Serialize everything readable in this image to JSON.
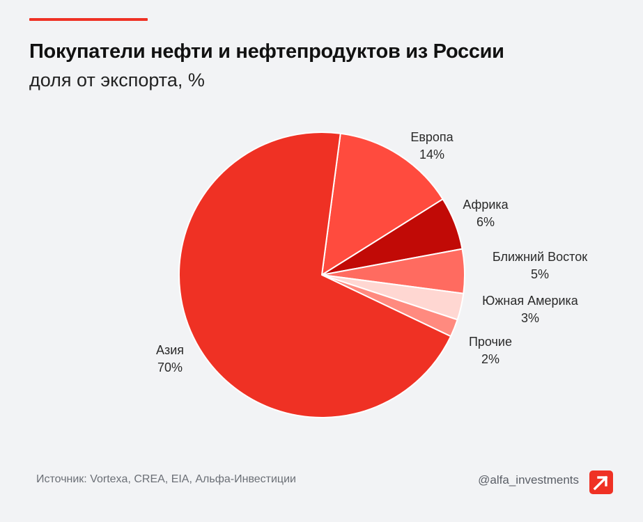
{
  "header": {
    "title": "Покупатели нефти и нефтепродуктов из России",
    "subtitle": "доля от экспорта, %"
  },
  "footer": {
    "source": "Источник: Vortexa, CREA, EIA, Альфа-Инвестиции",
    "handle": "@alfa_investments"
  },
  "logo_icon": "alfa-arrow-logo",
  "colors": {
    "accent": "#ef3124",
    "background": "#f2f3f5"
  },
  "chart_data": {
    "type": "pie",
    "title": "Покупатели нефти и нефтепродуктов из России",
    "subtitle": "доля от экспорта, %",
    "slices": [
      {
        "label": "Европа",
        "value": 14,
        "value_label": "14%",
        "color": "#ff4b3e"
      },
      {
        "label": "Африка",
        "value": 6,
        "value_label": "6%",
        "color": "#c10a06"
      },
      {
        "label": "Ближний Восток",
        "value": 5,
        "value_label": "5%",
        "color": "#ff6b60"
      },
      {
        "label": "Южная Америка",
        "value": 3,
        "value_label": "3%",
        "color": "#ffd7d2"
      },
      {
        "label": "Прочие",
        "value": 2,
        "value_label": "2%",
        "color": "#ff8a7f"
      },
      {
        "label": "Азия",
        "value": 70,
        "value_label": "70%",
        "color": "#ef3124"
      }
    ]
  }
}
